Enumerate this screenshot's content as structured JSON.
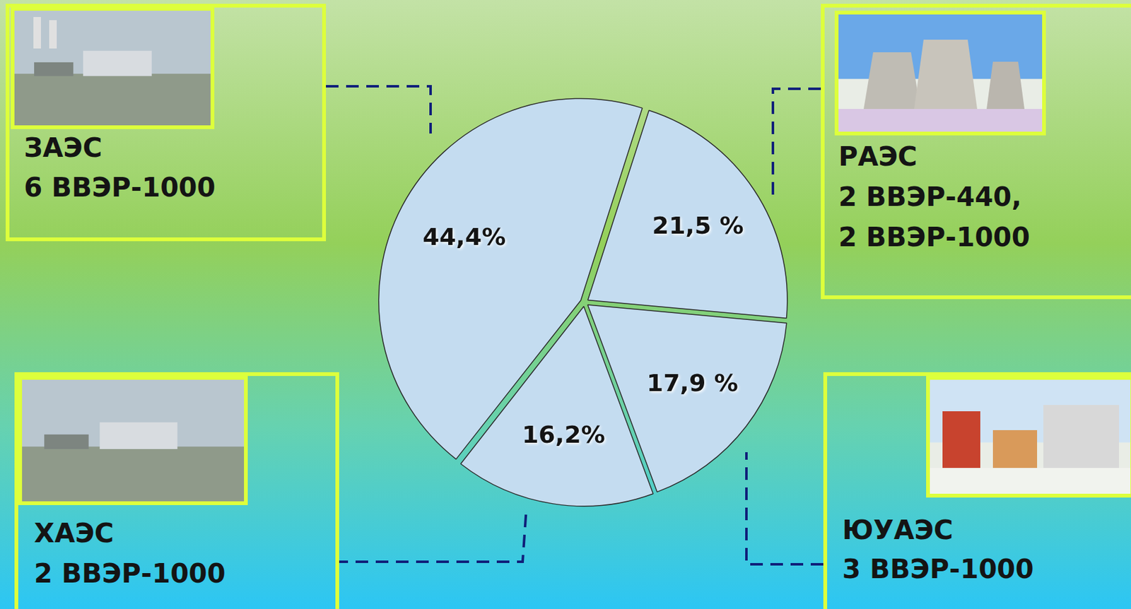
{
  "chart_data": {
    "type": "pie",
    "categories": [
      "ЗАЭС",
      "РАЭС",
      "ЮУАЭС",
      "ХАЭС"
    ],
    "values": [
      44.4,
      21.5,
      17.9,
      16.2
    ],
    "value_labels": [
      "44,4%",
      "21,5 %",
      "17,9 %",
      "16,2%"
    ],
    "annotations": [
      [
        "6 ВВЭР-1000"
      ],
      [
        "2 ВВЭР-440,",
        "2 ВВЭР-1000"
      ],
      [
        "3 ВВЭР-1000"
      ],
      [
        "2 ВВЭР-1000"
      ]
    ],
    "color": "#c4dcf0",
    "data_labels": true
  }
}
